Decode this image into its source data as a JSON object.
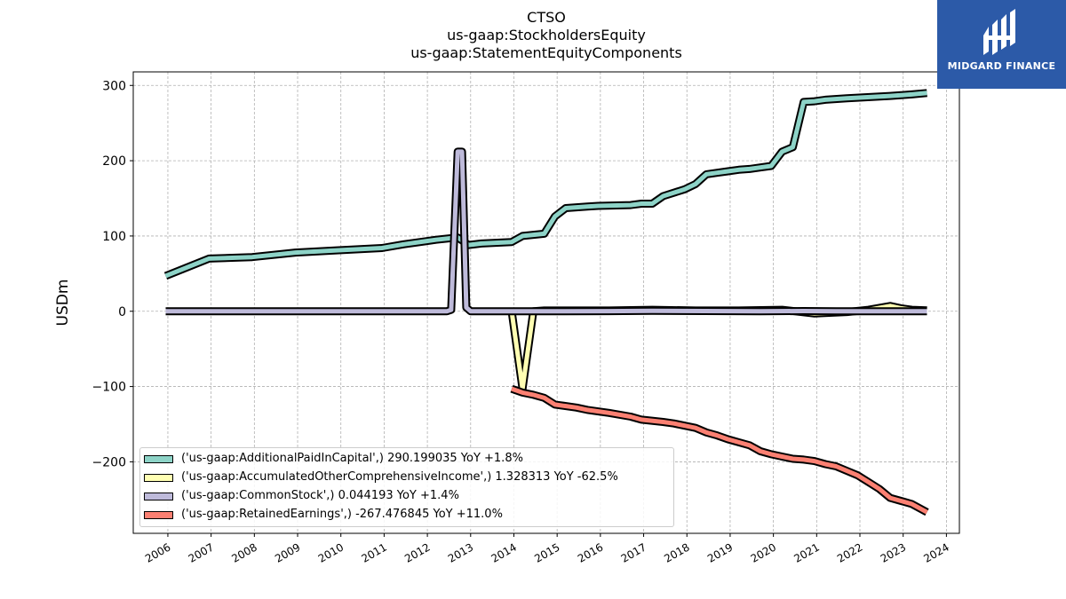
{
  "title": {
    "line1": "CTSO",
    "line2": "us-gaap:StockholdersEquity",
    "line3": "us-gaap:StatementEquityComponents"
  },
  "logo": {
    "text": "MIDGARD FINANCE",
    "bg_color": "#2c5aa8"
  },
  "chart_data": {
    "type": "line",
    "ylabel": "USDm",
    "xlabel": "",
    "ylim": [
      -295,
      318
    ],
    "xlim": [
      2005.2,
      2024.3
    ],
    "yticks": [
      -200,
      -100,
      0,
      100,
      200,
      300
    ],
    "xticks": [
      "2006",
      "2007",
      "2008",
      "2009",
      "2010",
      "2011",
      "2012",
      "2013",
      "2014",
      "2015",
      "2016",
      "2017",
      "2018",
      "2019",
      "2020",
      "2021",
      "2022",
      "2023",
      "2024"
    ],
    "grid": true,
    "legend_position": "lower-left",
    "series": [
      {
        "name": "('us-gaap:AdditionalPaidInCapital',) 290.199035 YoY +1.8%",
        "color": "#8dd3c7",
        "x": [
          2005.95,
          2006.95,
          2007.95,
          2008.95,
          2009.95,
          2010.95,
          2011.45,
          2011.95,
          2012.2,
          2012.7,
          2012.95,
          2013.25,
          2013.95,
          2014.2,
          2014.7,
          2014.95,
          2015.2,
          2015.7,
          2015.95,
          2016.7,
          2016.95,
          2017.2,
          2017.45,
          2017.95,
          2018.2,
          2018.45,
          2018.7,
          2018.95,
          2019.2,
          2019.45,
          2019.7,
          2019.95,
          2020.2,
          2020.45,
          2020.7,
          2020.95,
          2021.2,
          2021.7,
          2022.7,
          2022.95,
          2023.2,
          2023.55
        ],
        "values": [
          47,
          70,
          72,
          78,
          81,
          84,
          89,
          93,
          95,
          98,
          88,
          90,
          92,
          100,
          103,
          126,
          137,
          139,
          140,
          141,
          143,
          143,
          153,
          162,
          169,
          182,
          184,
          186,
          188,
          189,
          191,
          193,
          212,
          218,
          278,
          279,
          281,
          283,
          286,
          287,
          288,
          290
        ]
      },
      {
        "name": "('us-gaap:AccumulatedOtherComprehensiveIncome',) 1.328313 YoY -62.5%",
        "color": "#ffffb3",
        "x": [
          2013.95,
          2014.2,
          2014.45,
          2014.7,
          2015.2,
          2016.2,
          2017.2,
          2018.2,
          2019.2,
          2020.2,
          2020.95,
          2021.7,
          2022.2,
          2022.7,
          2022.95,
          2023.2,
          2023.55
        ],
        "values": [
          0,
          -103,
          0,
          1,
          1,
          1,
          2,
          1,
          1,
          2,
          -3,
          -1,
          2,
          7,
          4,
          2,
          1.3
        ]
      },
      {
        "name": "('us-gaap:CommonStock',) 0.044193 YoY +1.4%",
        "color": "#bebada",
        "x": [
          2005.95,
          2012.45,
          2012.55,
          2012.7,
          2012.8,
          2012.9,
          2013.0,
          2013.95,
          2016.2,
          2017.2,
          2019.7,
          2020.7,
          2021.45,
          2023.55
        ],
        "values": [
          0,
          0,
          2,
          212,
          212,
          5,
          0,
          0,
          0.2,
          0.5,
          0.1,
          0.3,
          0,
          0.04
        ]
      },
      {
        "name": "('us-gaap:RetainedEarnings',) -267.476845 YoY +11.0%",
        "color": "#fb8072",
        "x": [
          2013.95,
          2014.2,
          2014.45,
          2014.7,
          2014.95,
          2015.45,
          2015.7,
          2016.2,
          2016.7,
          2016.95,
          2017.45,
          2017.7,
          2017.95,
          2018.2,
          2018.45,
          2018.7,
          2018.95,
          2019.2,
          2019.45,
          2019.7,
          2019.95,
          2020.2,
          2020.45,
          2020.7,
          2020.95,
          2021.2,
          2021.45,
          2021.7,
          2021.95,
          2022.2,
          2022.45,
          2022.7,
          2022.95,
          2023.2,
          2023.55
        ],
        "values": [
          -103,
          -108,
          -111,
          -115,
          -124,
          -128,
          -131,
          -135,
          -140,
          -144,
          -147,
          -149,
          -152,
          -155,
          -161,
          -165,
          -170,
          -174,
          -178,
          -186,
          -190,
          -193,
          -196,
          -197,
          -199,
          -203,
          -206,
          -212,
          -218,
          -227,
          -236,
          -248,
          -252,
          -256,
          -267
        ]
      }
    ]
  }
}
